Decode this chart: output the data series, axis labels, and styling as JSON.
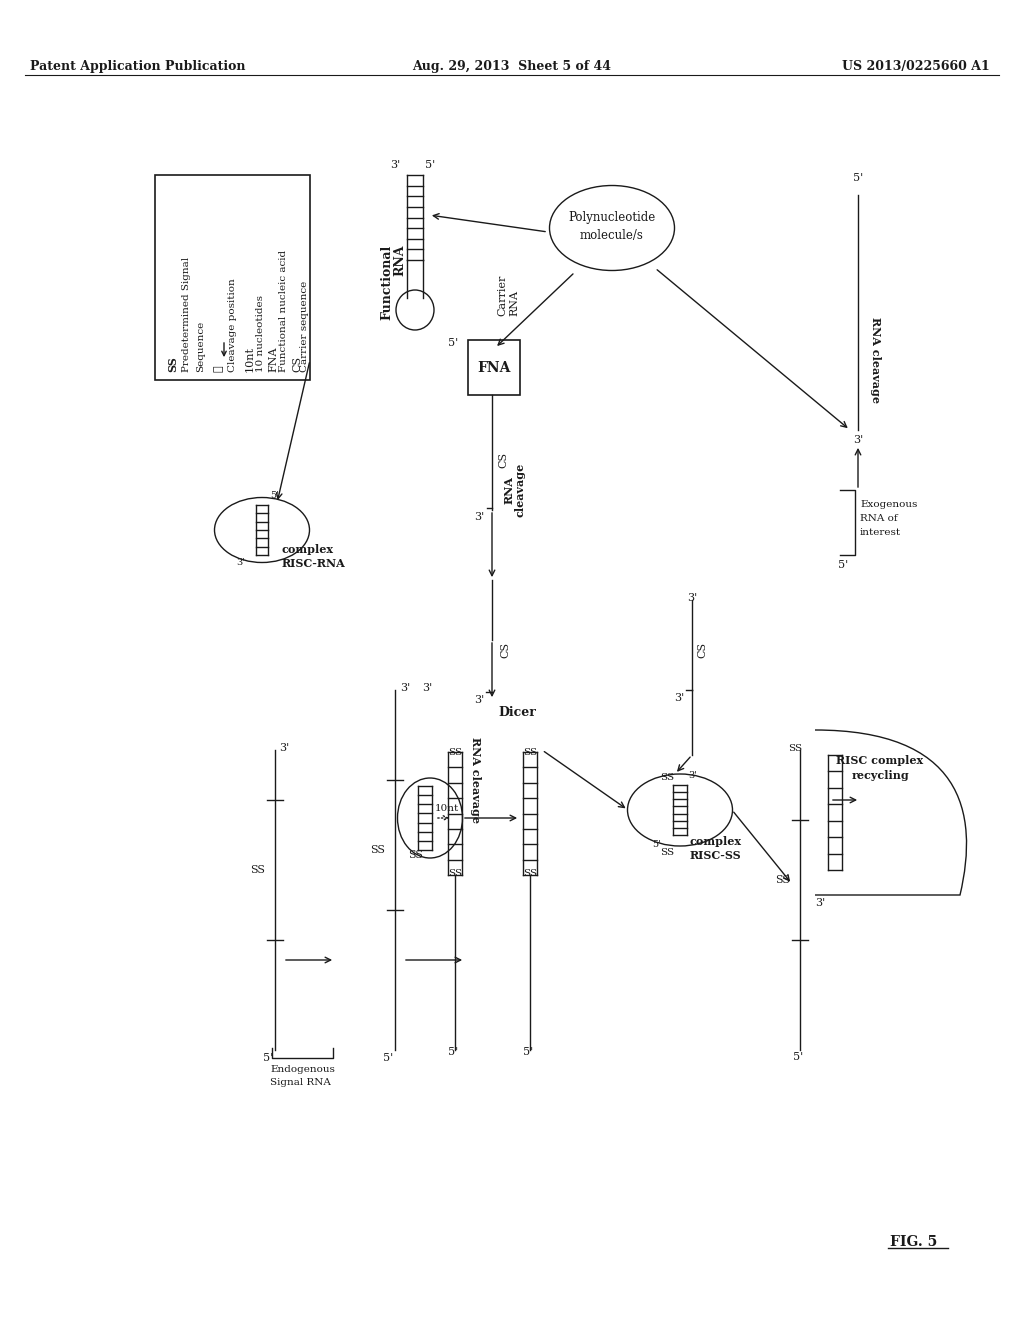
{
  "header_left": "Patent Application Publication",
  "header_mid": "Aug. 29, 2013  Sheet 5 of 44",
  "header_right": "US 2013/0225660 A1",
  "figure_label": "FIG. 5",
  "bg_color": "#ffffff",
  "ink_color": "#1a1a1a"
}
